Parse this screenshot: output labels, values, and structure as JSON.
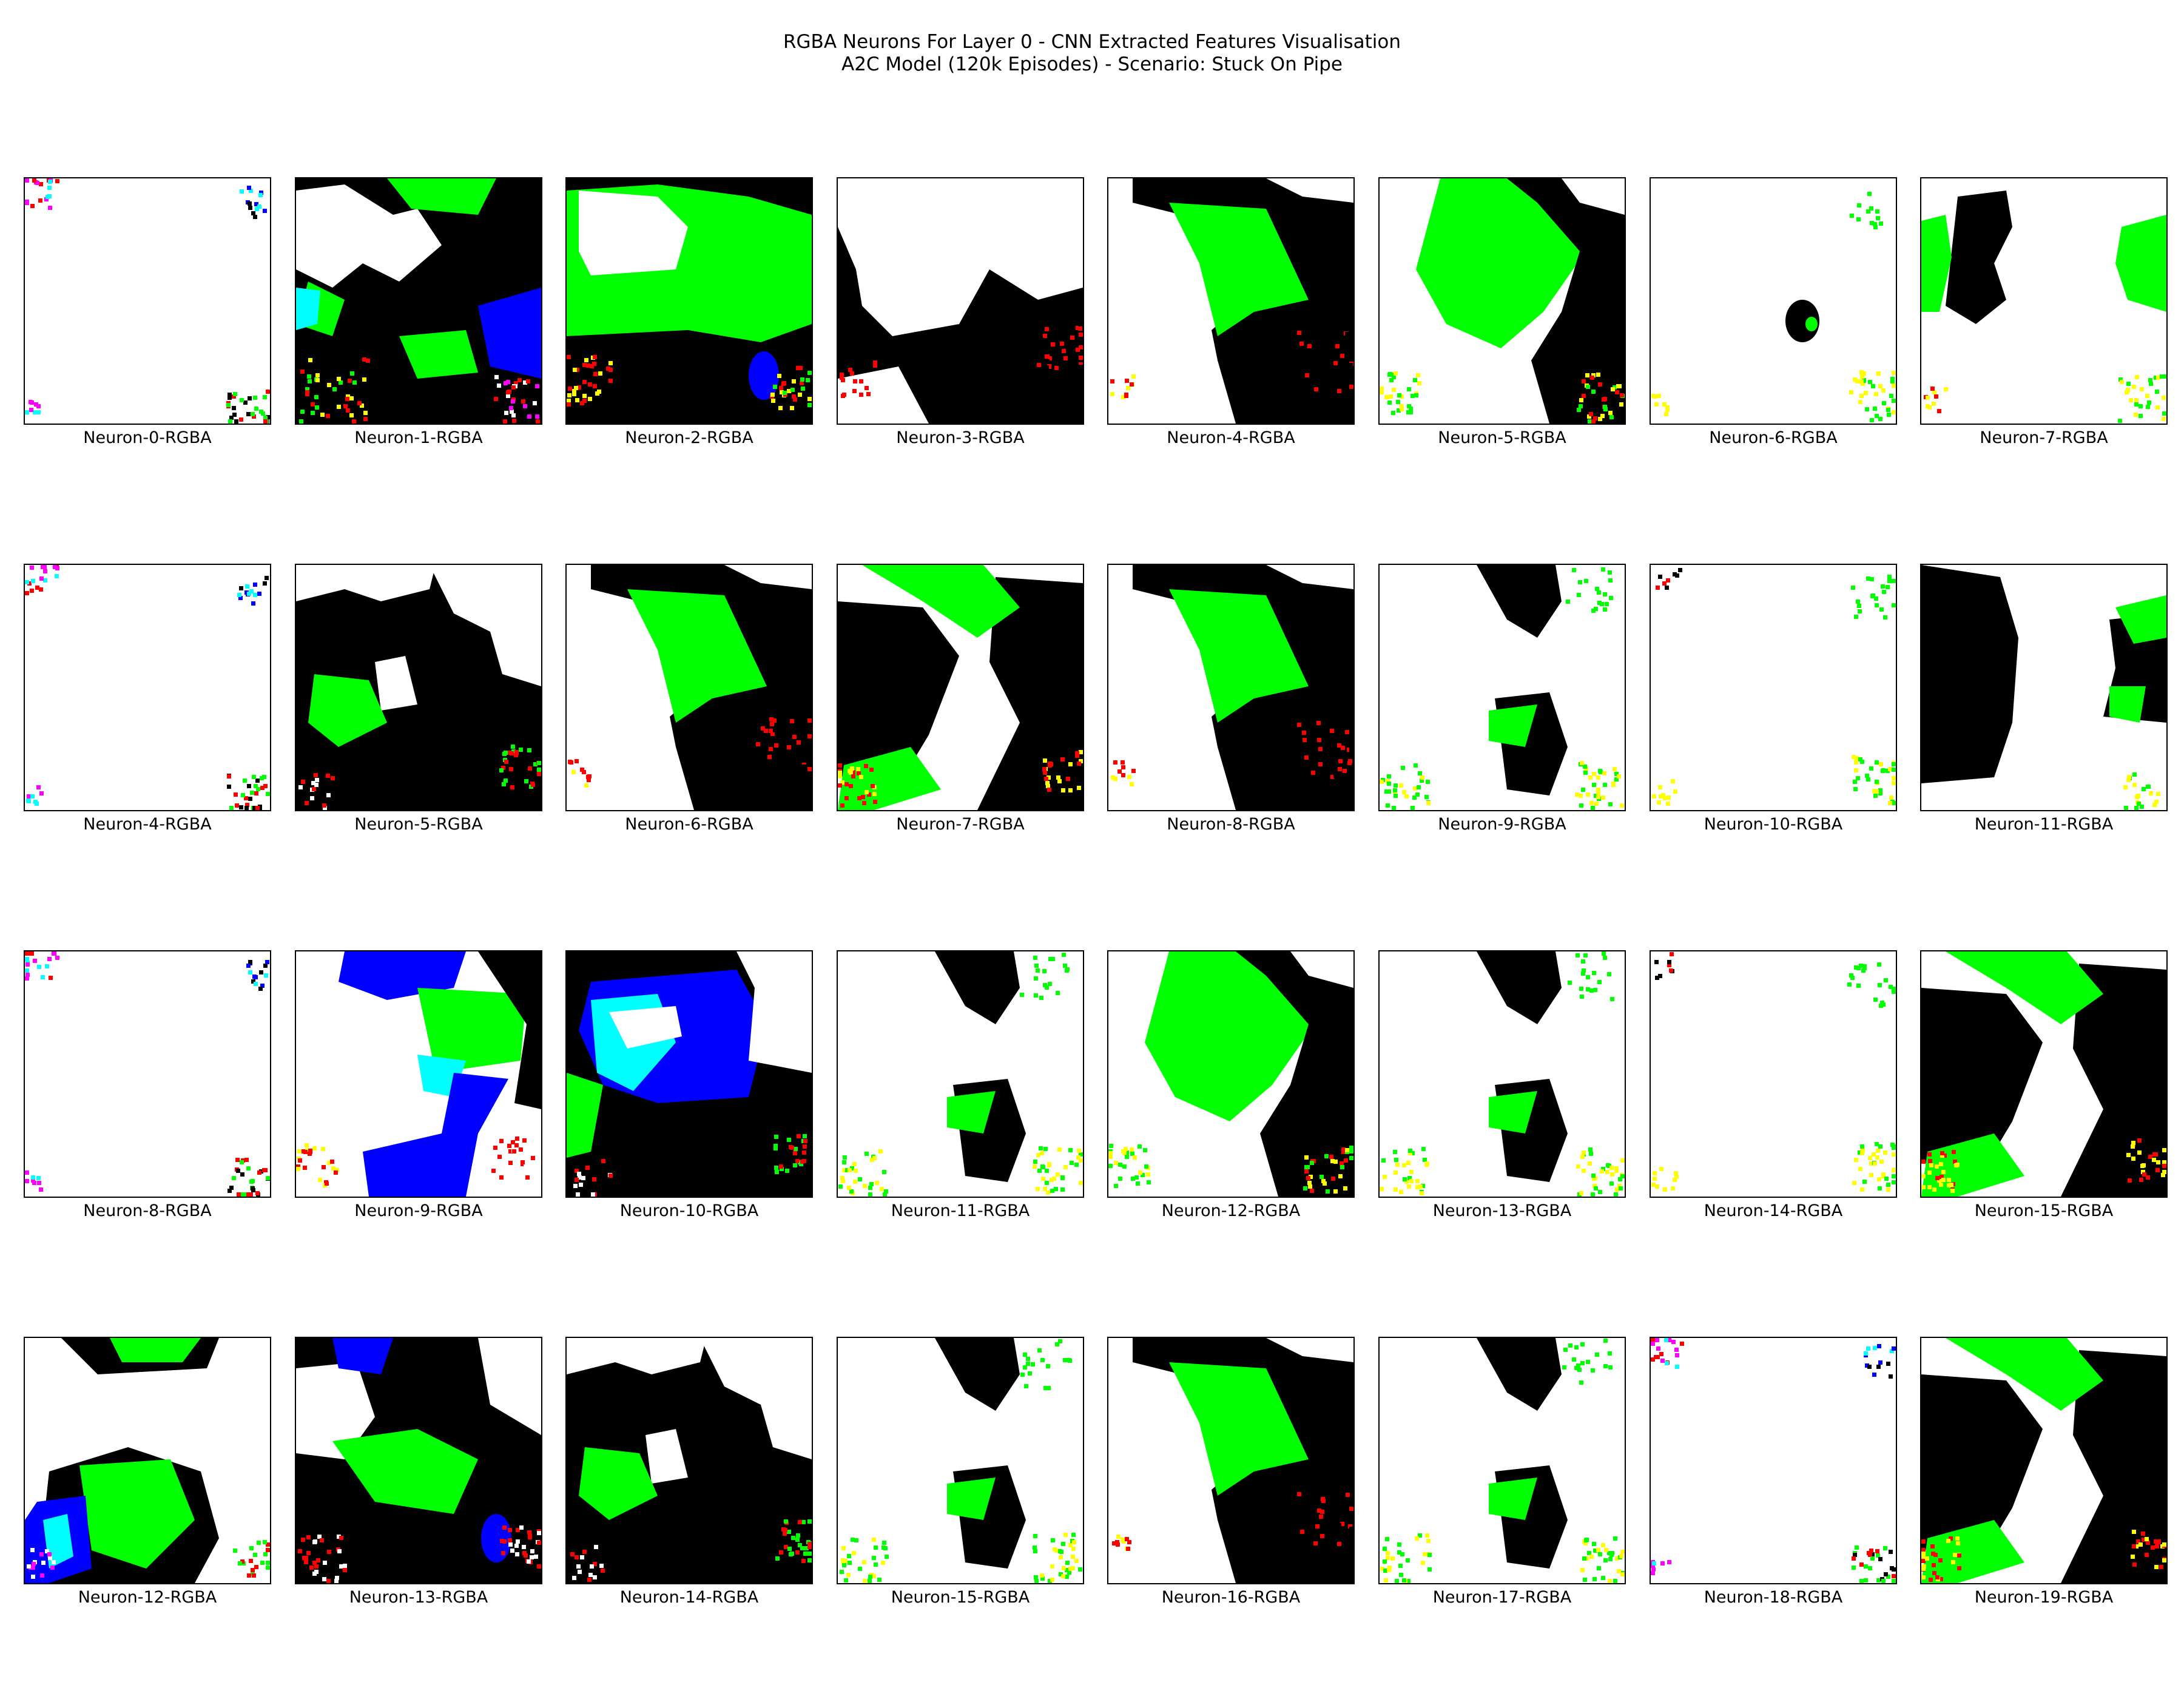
{
  "title": [
    "RGBA Neurons For Layer 0 - CNN Extracted Features Visualisation",
    "A2C Model (120k Episodes) - Scenario: Stuck On Pipe"
  ],
  "colors": {
    "white": "#ffffff",
    "black": "#000000",
    "green": "#00ff00",
    "blue": "#0000ff",
    "cyan": "#00ffff",
    "red": "#ff0000",
    "yellow": "#ffff00",
    "magenta": "#ff00ff"
  },
  "chart_data": {
    "type": "heatmap",
    "grid": "4x8",
    "axes": "off",
    "panels": [
      {
        "label": "Neuron-0-RGBA",
        "pattern": "mostly-white"
      },
      {
        "label": "Neuron-1-RGBA",
        "pattern": "black-green-white-blue-red"
      },
      {
        "label": "Neuron-2-RGBA",
        "pattern": "green-white-black-red"
      },
      {
        "label": "Neuron-3-RGBA",
        "pattern": "white-black-red"
      },
      {
        "label": "Neuron-4-RGBA",
        "pattern": "white-green-black-red"
      },
      {
        "label": "Neuron-5-RGBA",
        "pattern": "white-green-black-yellow"
      },
      {
        "label": "Neuron-6-RGBA",
        "pattern": "white-small-black-yellow"
      },
      {
        "label": "Neuron-7-RGBA",
        "pattern": "white-black-green-edges"
      },
      {
        "label": "Neuron-4-RGBA",
        "pattern": "mostly-white"
      },
      {
        "label": "Neuron-5-RGBA",
        "pattern": "black-white-green-red"
      },
      {
        "label": "Neuron-6-RGBA",
        "pattern": "white-green-black-red"
      },
      {
        "label": "Neuron-7-RGBA",
        "pattern": "black-white-green-yellow"
      },
      {
        "label": "Neuron-8-RGBA",
        "pattern": "white-green-black-red"
      },
      {
        "label": "Neuron-9-RGBA",
        "pattern": "white-black-green-yellow"
      },
      {
        "label": "Neuron-10-RGBA",
        "pattern": "white-green-yellow"
      },
      {
        "label": "Neuron-11-RGBA",
        "pattern": "black-white-green"
      },
      {
        "label": "Neuron-8-RGBA",
        "pattern": "mostly-white"
      },
      {
        "label": "Neuron-9-RGBA",
        "pattern": "white-blue-green-cyan-black"
      },
      {
        "label": "Neuron-10-RGBA",
        "pattern": "blue-cyan-white-black-green"
      },
      {
        "label": "Neuron-11-RGBA",
        "pattern": "white-black-green-yellow"
      },
      {
        "label": "Neuron-12-RGBA",
        "pattern": "white-green-black-yellow"
      },
      {
        "label": "Neuron-13-RGBA",
        "pattern": "white-black-green-yellow"
      },
      {
        "label": "Neuron-14-RGBA",
        "pattern": "white-green-yellow"
      },
      {
        "label": "Neuron-15-RGBA",
        "pattern": "black-white-green-yellow"
      },
      {
        "label": "Neuron-12-RGBA",
        "pattern": "white-black-green-blue-magenta"
      },
      {
        "label": "Neuron-13-RGBA",
        "pattern": "black-white-green-blue-red"
      },
      {
        "label": "Neuron-14-RGBA",
        "pattern": "black-white-green-red"
      },
      {
        "label": "Neuron-15-RGBA",
        "pattern": "white-black-green-yellow"
      },
      {
        "label": "Neuron-16-RGBA",
        "pattern": "white-green-black-red"
      },
      {
        "label": "Neuron-17-RGBA",
        "pattern": "white-black-green-yellow"
      },
      {
        "label": "Neuron-18-RGBA",
        "pattern": "mostly-white"
      },
      {
        "label": "Neuron-19-RGBA",
        "pattern": "black-white-green-yellow"
      }
    ]
  }
}
